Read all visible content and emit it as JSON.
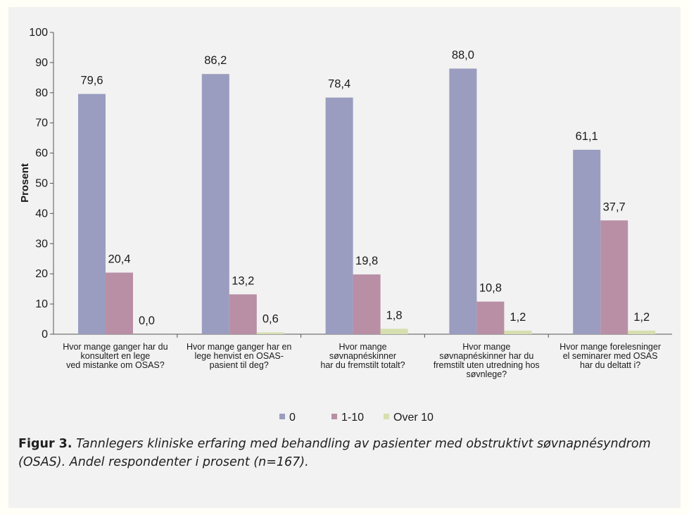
{
  "chart_data": {
    "type": "bar",
    "ylabel": "Prosent",
    "xlabel": "",
    "ylim": [
      0,
      100
    ],
    "yticks": [
      0,
      10,
      20,
      30,
      40,
      50,
      60,
      70,
      80,
      90,
      100
    ],
    "grid": false,
    "legend_position": "bottom",
    "categories": [
      "Hvor mange ganger har du konsultert en lege ved mistanke om OSAS?",
      "Hvor mange ganger har en lege henvist en OSAS-pasient til deg?",
      "Hvor mange søvnapnéskinner har du fremstilt totalt?",
      "Hvor mange søvnapnéskinner har du fremstilt uten utredning hos søvnlege?",
      "Hvor mange forelesninger el seminarer med OSAS har du deltatt i?"
    ],
    "category_lines": [
      [
        "Hvor mange ganger har du",
        "konsultert en lege",
        "ved mistanke om OSAS?"
      ],
      [
        "Hvor mange ganger har en",
        "lege henvist en OSAS-",
        "pasient til deg?"
      ],
      [
        "Hvor mange",
        "søvnapnéskinner",
        "har du fremstilt totalt?"
      ],
      [
        "Hvor mange",
        "søvnapnéskinner har du",
        "fremstilt uten utredning hos",
        "søvnlege?"
      ],
      [
        "Hvor mange forelesninger",
        "el seminarer med OSAS",
        "har du deltatt i?"
      ]
    ],
    "series": [
      {
        "name": "0",
        "color": "#9a9dc0",
        "values": [
          79.6,
          86.2,
          78.4,
          88.0,
          61.1
        ],
        "labels": [
          "79,6",
          "86,2",
          "78,4",
          "88,0",
          "61,1"
        ]
      },
      {
        "name": "1-10",
        "color": "#b98fa5",
        "values": [
          20.4,
          13.2,
          19.8,
          10.8,
          37.7
        ],
        "labels": [
          "20,4",
          "13,2",
          "19,8",
          "10,8",
          "37,7"
        ]
      },
      {
        "name": "Over 10",
        "color": "#d6dfaf",
        "values": [
          0.0,
          0.6,
          1.8,
          1.2,
          1.2
        ],
        "labels": [
          "0,0",
          "0,6",
          "1,8",
          "1,2",
          "1,2"
        ]
      }
    ]
  },
  "caption": {
    "lead": "Figur 3.",
    "text": "Tannlegers kliniske erfaring med behandling av pasienter med obstruktivt søvnapnésyndrom (OSAS). Andel respondenter i prosent (n=167)."
  }
}
